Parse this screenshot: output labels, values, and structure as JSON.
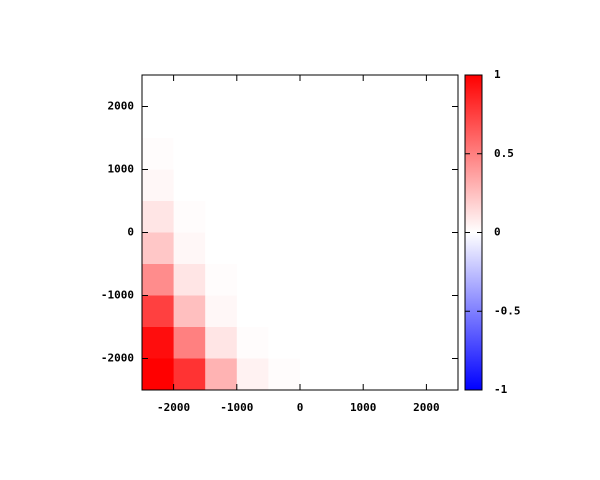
{
  "chart_data": {
    "type": "heatmap",
    "x": [
      -2250,
      -1750,
      -1250,
      -750,
      -250,
      250,
      750,
      1250,
      1750,
      2250
    ],
    "y": [
      2250,
      1750,
      1250,
      750,
      250,
      -250,
      -750,
      -1250,
      -1750,
      -2250
    ],
    "z": [
      [
        0,
        0,
        0,
        0,
        0,
        0,
        0,
        0,
        0,
        0
      ],
      [
        0,
        0,
        0,
        0,
        0,
        0,
        0,
        0,
        0,
        0
      ],
      [
        0.01,
        0,
        0,
        0,
        0,
        0,
        0,
        0,
        0,
        0
      ],
      [
        0.03,
        0,
        0,
        0,
        0,
        0,
        0,
        0,
        0,
        0
      ],
      [
        0.1,
        0.01,
        0,
        0,
        0,
        0,
        0,
        0,
        0,
        0
      ],
      [
        0.22,
        0.03,
        0,
        0,
        0,
        0,
        0,
        0,
        0,
        0
      ],
      [
        0.45,
        0.1,
        0.01,
        0,
        0,
        0,
        0,
        0,
        0,
        0
      ],
      [
        0.75,
        0.25,
        0.03,
        0,
        0,
        0,
        0,
        0,
        0,
        0
      ],
      [
        0.95,
        0.5,
        0.1,
        0.01,
        0,
        0,
        0,
        0,
        0,
        0
      ],
      [
        1,
        0.8,
        0.3,
        0.05,
        0.01,
        0,
        0,
        0,
        0,
        0
      ]
    ],
    "xlim": [
      -2500,
      2500
    ],
    "ylim": [
      -2500,
      2500
    ],
    "xticks": [
      -2000,
      -1000,
      0,
      1000,
      2000
    ],
    "yticks": [
      -2000,
      -1000,
      0,
      1000,
      2000
    ],
    "zlim": [
      -1,
      1
    ],
    "zticks": [
      -1,
      -0.5,
      0,
      0.5,
      1
    ],
    "colormap": [
      "#0000ff",
      "#ffffff",
      "#ff0000"
    ]
  }
}
